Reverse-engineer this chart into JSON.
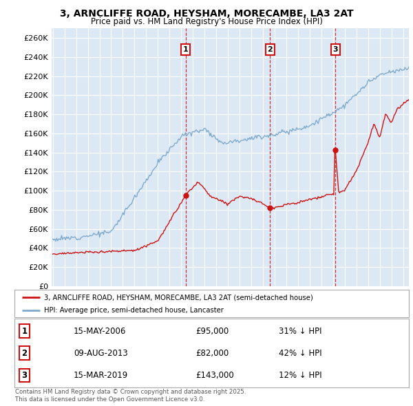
{
  "title": "3, ARNCLIFFE ROAD, HEYSHAM, MORECAMBE, LA3 2AT",
  "subtitle": "Price paid vs. HM Land Registry's House Price Index (HPI)",
  "background_color": "#dce9f5",
  "plot_bg_color": "#dce9f5",
  "hpi_color": "#7faacc",
  "price_color": "#cc1111",
  "ylim": [
    0,
    270000
  ],
  "x_start_year": 1995,
  "x_end_year": 2026,
  "transactions": [
    {
      "date": 2006.37,
      "price": 95000,
      "label": "1"
    },
    {
      "date": 2013.6,
      "price": 82000,
      "label": "2"
    },
    {
      "date": 2019.2,
      "price": 143000,
      "label": "3"
    }
  ],
  "legend_entries": [
    "3, ARNCLIFFE ROAD, HEYSHAM, MORECAMBE, LA3 2AT (semi-detached house)",
    "HPI: Average price, semi-detached house, Lancaster"
  ],
  "table_rows": [
    {
      "num": "1",
      "date": "15-MAY-2006",
      "price": "£95,000",
      "hpi": "31% ↓ HPI"
    },
    {
      "num": "2",
      "date": "09-AUG-2013",
      "price": "£82,000",
      "hpi": "42% ↓ HPI"
    },
    {
      "num": "3",
      "date": "15-MAR-2019",
      "price": "£143,000",
      "hpi": "12% ↓ HPI"
    }
  ],
  "footer": "Contains HM Land Registry data © Crown copyright and database right 2025.\nThis data is licensed under the Open Government Licence v3.0."
}
